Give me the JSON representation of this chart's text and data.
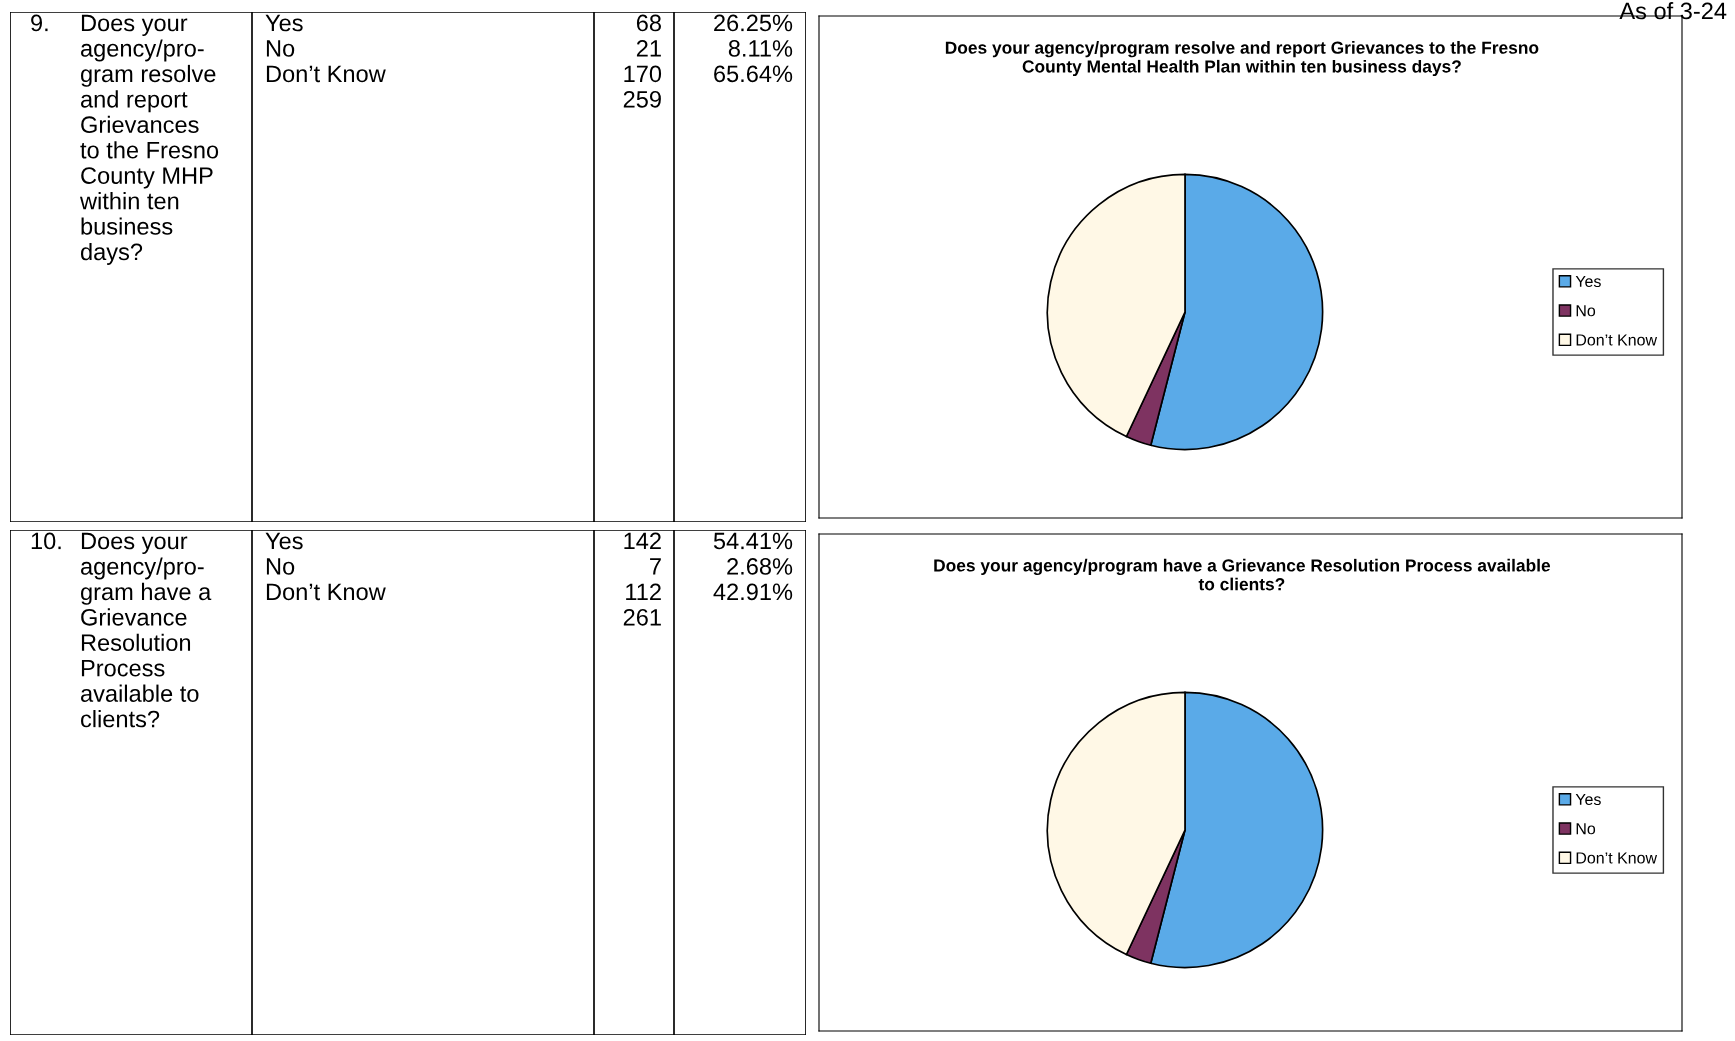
{
  "chart_data": [
    {
      "type": "other",
      "annotations": [
        "9.",
        "Does your\nagency/pro-\ngram resolve\nand report\nGrievances\nto the Fresno\nCounty MHP\nwithin ten\nbusiness\ndays?",
        "Yes\nNo\nDon’t Know",
        "68\n21\n170\n259",
        "26.25%\n8.11%\n65.64%"
      ]
    },
    {
      "type": "pie",
      "title": "Does your agency/program resolve and report Grievances to the Fresno\nCounty Mental Health Plan within ten business days?",
      "categories": [
        "Yes",
        "No",
        "Don’t Know"
      ],
      "values": [
        54,
        3,
        43
      ],
      "colors": [
        "#5aaae8",
        "#7e3361",
        "#fff8e6"
      ],
      "legend": "right",
      "annotations": [
        "As of 3-24"
      ]
    },
    {
      "type": "other",
      "annotations": [
        "10.",
        "Does your\nagency/pro-\ngram have a\nGrievance\nResolution\nProcess\navailable to\nclients?",
        "Yes\nNo\nDon’t Know",
        "142\n7\n112\n261",
        "54.41%\n2.68%\n42.91%"
      ]
    },
    {
      "type": "pie",
      "title": "Does your agency/program have a Grievance Resolution Process available\nto clients?",
      "categories": [
        "Yes",
        "No",
        "Don’t Know"
      ],
      "values": [
        54,
        3,
        43
      ],
      "colors": [
        "#5aaae8",
        "#7e3361",
        "#fff8e6"
      ],
      "legend": "right"
    }
  ]
}
